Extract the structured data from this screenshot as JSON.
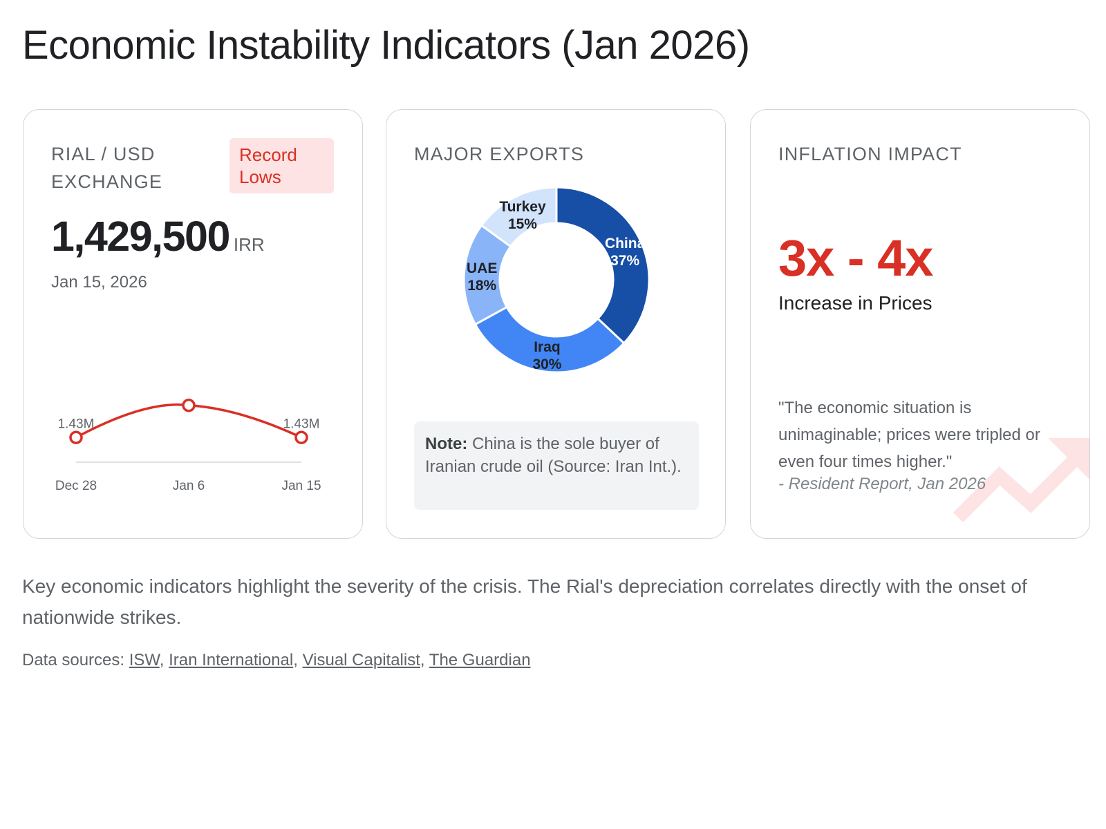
{
  "page": {
    "title": "Economic Instability Indicators (Jan 2026)"
  },
  "rial_card": {
    "label": "RIAL / USD EXCHANGE",
    "badge": "Record Lows",
    "value": "1,429,500",
    "unit": "IRR",
    "date": "Jan 15, 2026"
  },
  "exports_card": {
    "label": "MAJOR EXPORTS",
    "note_bold": "Note:",
    "note_text": " China is the sole buyer of Iranian crude oil (Source: Iran Int.)."
  },
  "inflation_card": {
    "label": "INFLATION IMPACT",
    "value": "3x - 4x",
    "subtitle": "Increase in Prices",
    "quote": "\"The economic situation is unimaginable; prices were tripled or even four times higher.\"",
    "quote_source": "- Resident Report, Jan 2026",
    "icon": "trending-up-icon"
  },
  "summary": "Key economic indicators highlight the severity of the crisis. The Rial's depreciation correlates directly with the onset of nationwide strikes.",
  "sources": {
    "prefix": "Data sources: ",
    "links": [
      "ISW",
      "Iran International",
      "Visual Capitalist",
      "The Guardian"
    ]
  },
  "colors": {
    "accent_red": "#d93025",
    "badge_bg": "#fde3e3",
    "china": "#174ea6",
    "iraq": "#4285f4",
    "uae": "#8ab4f8",
    "turkey": "#d2e3fc"
  },
  "chart_data": [
    {
      "type": "line",
      "categories": [
        "Dec 28",
        "Jan 6",
        "Jan 15"
      ],
      "series": [
        {
          "values": [
            1.43,
            1.46,
            1.43
          ],
          "labels": [
            "1.43M",
            "",
            "1.43M"
          ]
        }
      ],
      "unit": "M IRR",
      "grid": false,
      "color": "#d93025"
    },
    {
      "type": "pie",
      "donut": true,
      "categories": [
        "China",
        "Iraq",
        "UAE",
        "Turkey"
      ],
      "values": [
        37,
        30,
        18,
        15
      ],
      "labels": [
        "37%",
        "30%",
        "18%",
        "15%"
      ],
      "colors": [
        "#174ea6",
        "#4285f4",
        "#8ab4f8",
        "#d2e3fc"
      ]
    }
  ]
}
